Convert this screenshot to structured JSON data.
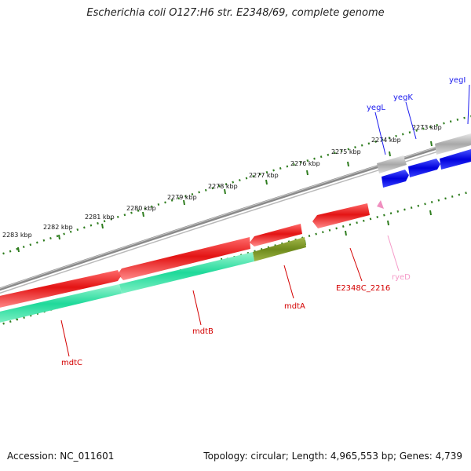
{
  "title": "Escherichia coli O127:H6 str. E2348/69, complete genome",
  "footer": {
    "accession": "Accession: NC_011601",
    "topology": "Topology: circular; Length: 4,965,553 bp; Genes: 4,739"
  },
  "colors": {
    "backbone": "#8c8c8c",
    "tick": "#2f7d1f",
    "forward_cds": "#0a16e0",
    "reverse_cds": "#e51a1a",
    "reverse_aux": "#27d99a",
    "overlap": "#7a8f2a",
    "pseudo": "#bdbdbd",
    "ncrna": "#f08fbf"
  },
  "scale_labels": [
    "2273 kbp",
    "2274 kbp",
    "2275 kbp",
    "2276 kbp",
    "2277 kbp",
    "2278 kbp",
    "2279 kbp",
    "2280 kbp",
    "2281 kbp",
    "2282 kbp",
    "2283 kbp"
  ],
  "genes": [
    {
      "name": "yegI",
      "strand": "+",
      "color": "#1a1aee"
    },
    {
      "name": "yegK",
      "strand": "+",
      "color": "#1a1aee"
    },
    {
      "name": "yegL",
      "strand": "+",
      "color": "#1a1aee"
    },
    {
      "name": "E2348C_2216",
      "strand": "-",
      "color": "#d40000"
    },
    {
      "name": "ryeD",
      "strand": "-",
      "color": "#f59ac8"
    },
    {
      "name": "mdtA",
      "strand": "-",
      "color": "#d40000"
    },
    {
      "name": "mdtB",
      "strand": "-",
      "color": "#d40000"
    },
    {
      "name": "mdtC",
      "strand": "-",
      "color": "#d40000"
    }
  ]
}
